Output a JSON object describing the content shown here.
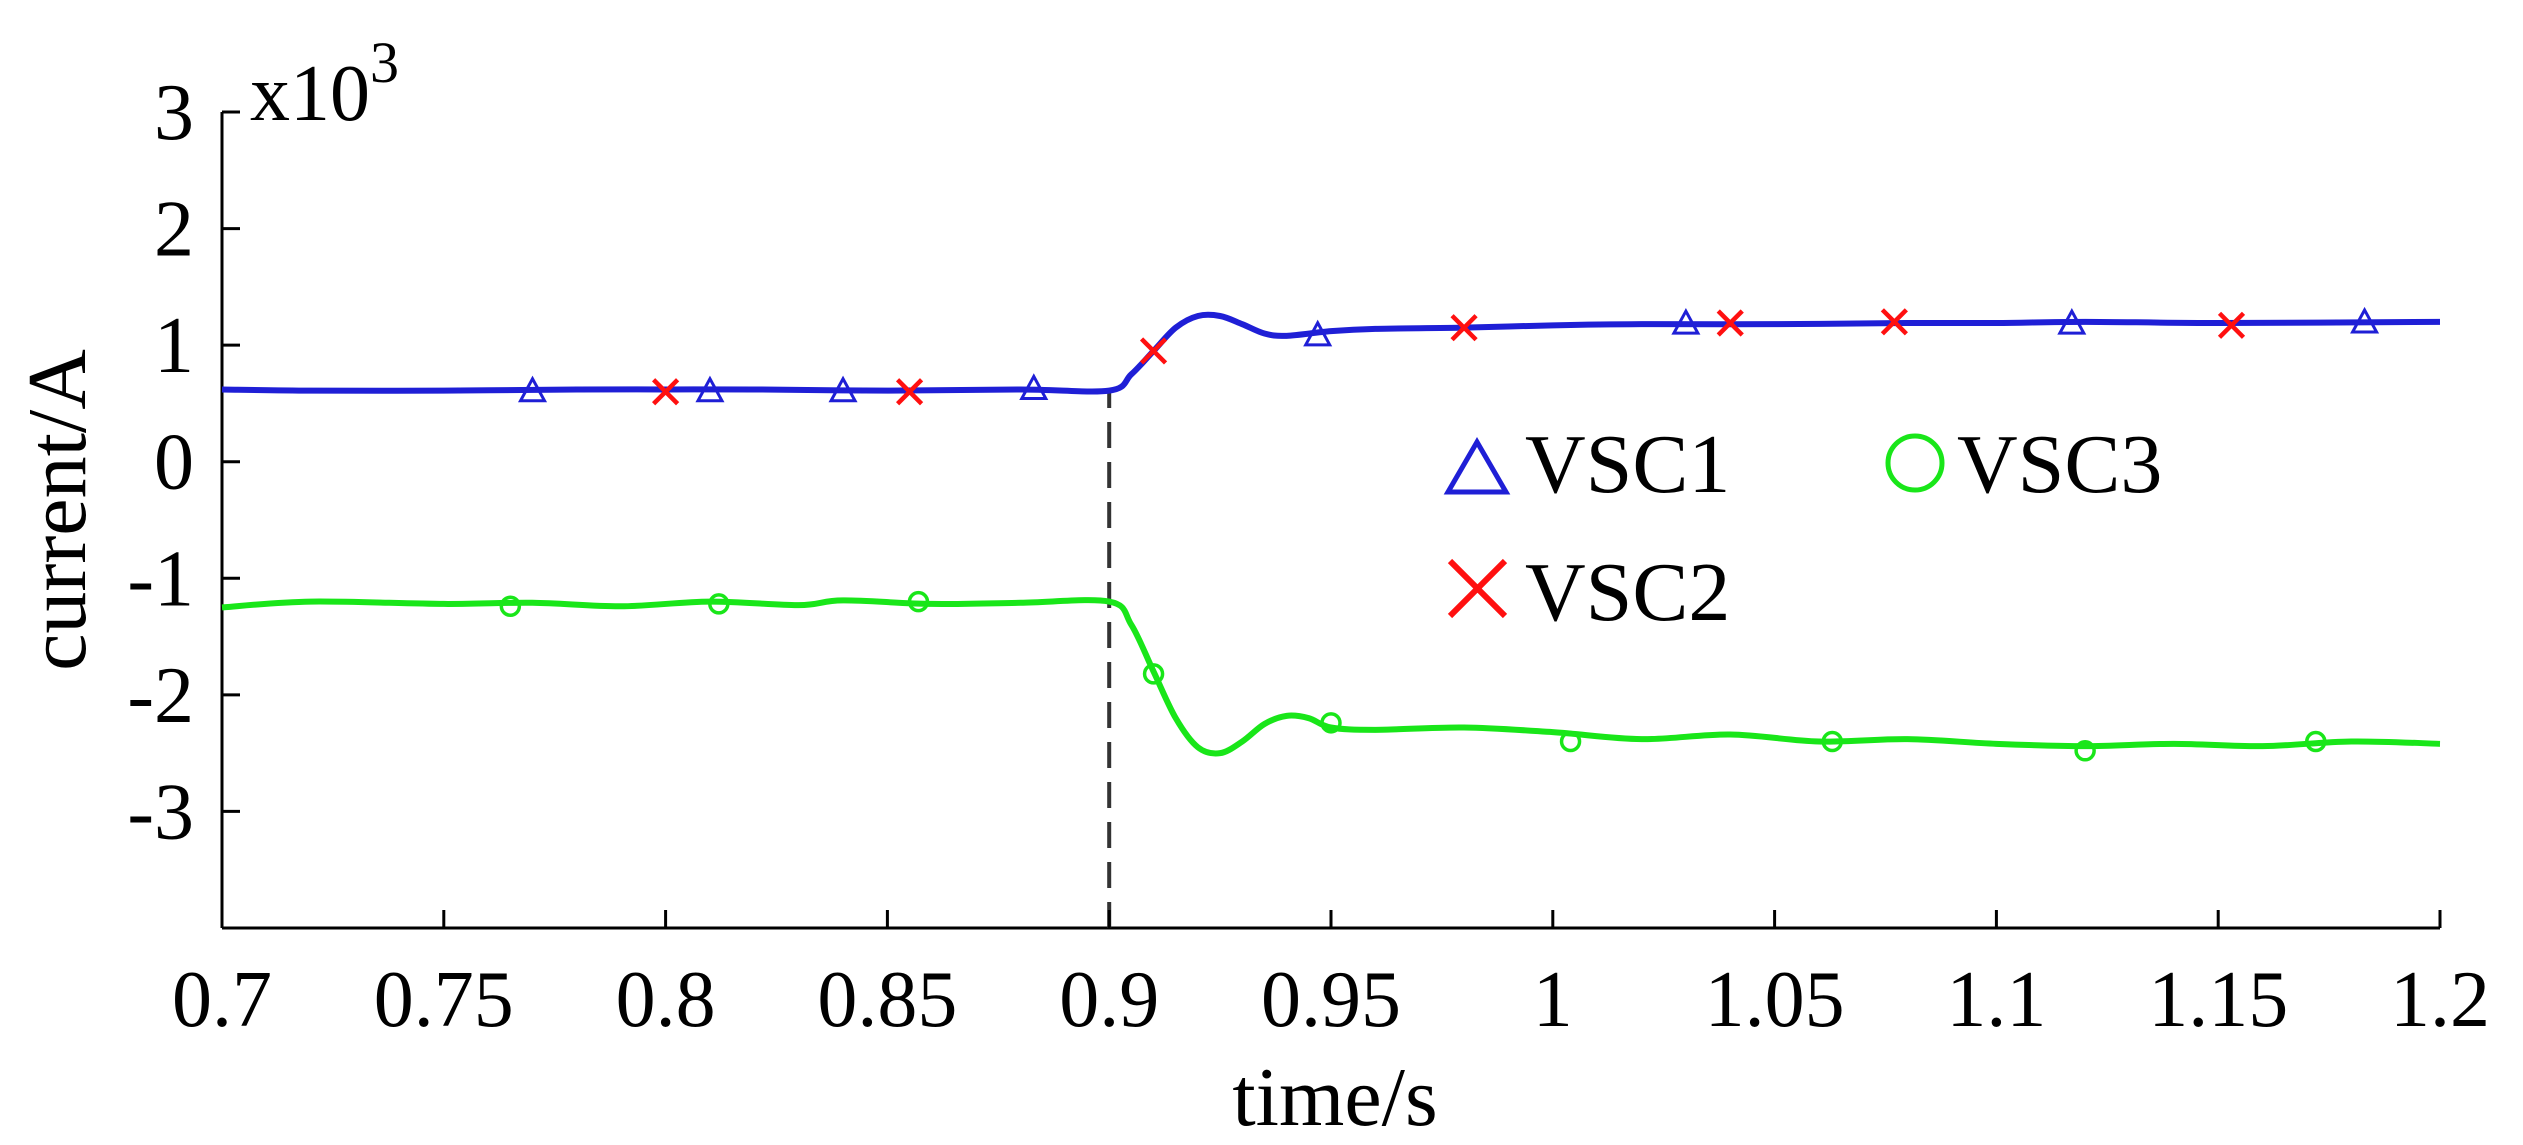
{
  "chart_data": {
    "type": "line",
    "title": "",
    "xlabel": "time/s",
    "ylabel": "current/A",
    "y_scale_label": "x10",
    "y_scale_exponent": "3",
    "xlim": [
      0.7,
      1.2
    ],
    "ylim": [
      -4,
      3
    ],
    "x_ticks": [
      0.7,
      0.75,
      0.8,
      0.85,
      0.9,
      0.95,
      1.0,
      1.05,
      1.1,
      1.15,
      1.2
    ],
    "x_tick_labels": [
      "0.7",
      "0.75",
      "0.8",
      "0.85",
      "0.9",
      "0.95",
      "1",
      "1.05",
      "1.1",
      "1.15",
      "1.2"
    ],
    "y_ticks": [
      -3,
      -2,
      -1,
      0,
      1,
      2,
      3
    ],
    "y_tick_labels": [
      "-3",
      "-2",
      "-1",
      "0",
      "1",
      "2",
      "3"
    ],
    "vline": {
      "x": 0.9,
      "style": "dashed",
      "color": "#333333"
    },
    "grid": false,
    "legend_position": "center-right",
    "series": [
      {
        "name": "VSC1",
        "color": "#1f1fd6",
        "marker": "triangle",
        "points": [
          [
            0.7,
            0.62
          ],
          [
            0.72,
            0.61
          ],
          [
            0.75,
            0.61
          ],
          [
            0.78,
            0.62
          ],
          [
            0.8,
            0.62
          ],
          [
            0.82,
            0.62
          ],
          [
            0.85,
            0.61
          ],
          [
            0.88,
            0.62
          ],
          [
            0.9,
            0.61
          ],
          [
            0.905,
            0.75
          ],
          [
            0.91,
            0.95
          ],
          [
            0.915,
            1.15
          ],
          [
            0.92,
            1.25
          ],
          [
            0.925,
            1.25
          ],
          [
            0.93,
            1.18
          ],
          [
            0.935,
            1.1
          ],
          [
            0.94,
            1.08
          ],
          [
            0.95,
            1.12
          ],
          [
            0.96,
            1.14
          ],
          [
            0.98,
            1.15
          ],
          [
            1.0,
            1.17
          ],
          [
            1.02,
            1.18
          ],
          [
            1.05,
            1.18
          ],
          [
            1.08,
            1.19
          ],
          [
            1.1,
            1.19
          ],
          [
            1.12,
            1.2
          ],
          [
            1.15,
            1.19
          ],
          [
            1.2,
            1.2
          ]
        ],
        "markers": [
          [
            0.77,
            0.6
          ],
          [
            0.81,
            0.6
          ],
          [
            0.84,
            0.6
          ],
          [
            0.883,
            0.62
          ],
          [
            0.947,
            1.08
          ],
          [
            1.03,
            1.18
          ],
          [
            1.117,
            1.18
          ],
          [
            1.183,
            1.19
          ]
        ]
      },
      {
        "name": "VSC2",
        "color": "#ff1010",
        "marker": "cross",
        "points": [],
        "markers": [
          [
            0.8,
            0.6
          ],
          [
            0.855,
            0.6
          ],
          [
            0.91,
            0.95
          ],
          [
            0.98,
            1.15
          ],
          [
            1.04,
            1.19
          ],
          [
            1.077,
            1.2
          ],
          [
            1.153,
            1.17
          ]
        ]
      },
      {
        "name": "VSC3",
        "color": "#19e619",
        "marker": "circle",
        "points": [
          [
            0.7,
            -1.25
          ],
          [
            0.72,
            -1.2
          ],
          [
            0.75,
            -1.22
          ],
          [
            0.77,
            -1.21
          ],
          [
            0.79,
            -1.24
          ],
          [
            0.81,
            -1.2
          ],
          [
            0.83,
            -1.23
          ],
          [
            0.84,
            -1.19
          ],
          [
            0.86,
            -1.22
          ],
          [
            0.88,
            -1.21
          ],
          [
            0.9,
            -1.2
          ],
          [
            0.905,
            -1.4
          ],
          [
            0.91,
            -1.8
          ],
          [
            0.915,
            -2.2
          ],
          [
            0.92,
            -2.45
          ],
          [
            0.925,
            -2.5
          ],
          [
            0.93,
            -2.4
          ],
          [
            0.935,
            -2.25
          ],
          [
            0.94,
            -2.18
          ],
          [
            0.945,
            -2.2
          ],
          [
            0.95,
            -2.28
          ],
          [
            0.96,
            -2.3
          ],
          [
            0.98,
            -2.28
          ],
          [
            1.0,
            -2.32
          ],
          [
            1.02,
            -2.38
          ],
          [
            1.04,
            -2.34
          ],
          [
            1.06,
            -2.4
          ],
          [
            1.08,
            -2.38
          ],
          [
            1.1,
            -2.42
          ],
          [
            1.12,
            -2.44
          ],
          [
            1.14,
            -2.42
          ],
          [
            1.16,
            -2.44
          ],
          [
            1.18,
            -2.4
          ],
          [
            1.2,
            -2.42
          ]
        ],
        "markers": [
          [
            0.765,
            -1.24
          ],
          [
            0.812,
            -1.22
          ],
          [
            0.857,
            -1.2
          ],
          [
            0.91,
            -1.82
          ],
          [
            0.95,
            -2.24
          ],
          [
            1.004,
            -2.4
          ],
          [
            1.063,
            -2.4
          ],
          [
            1.12,
            -2.48
          ],
          [
            1.172,
            -2.4
          ]
        ]
      }
    ]
  }
}
